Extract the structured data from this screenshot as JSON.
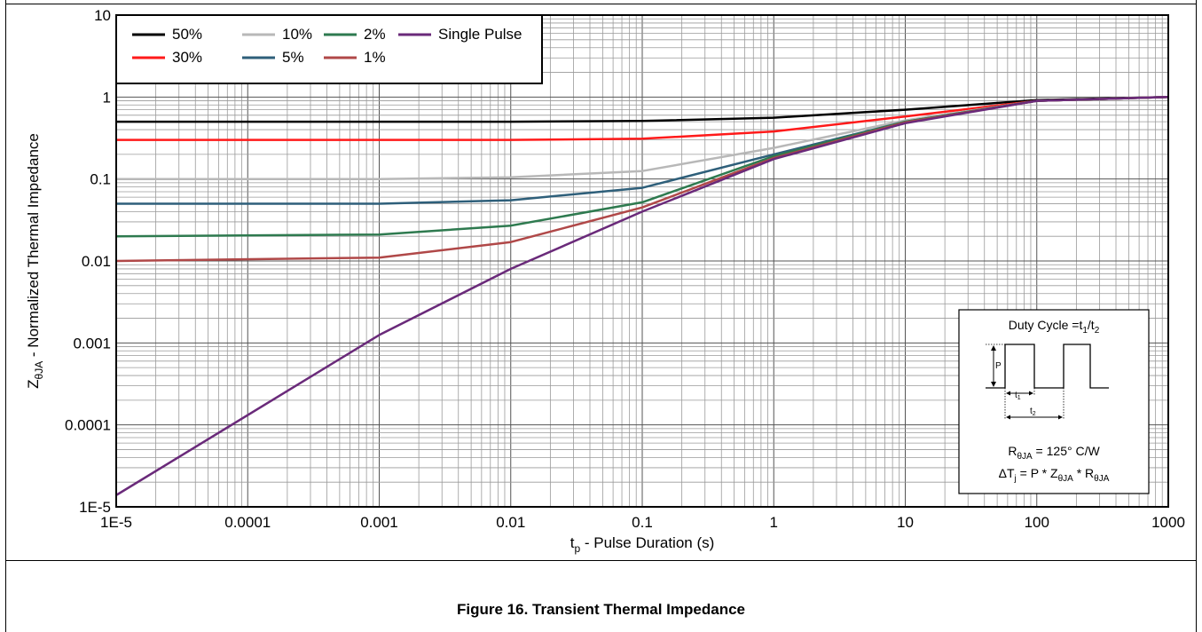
{
  "caption": "Figure 16. Transient Thermal Impedance",
  "chart_data": {
    "type": "line",
    "title": "",
    "xscale": "log",
    "yscale": "log",
    "xlabel": {
      "main": "t",
      "sub": "p",
      "rest": " - Pulse Duration (s)"
    },
    "ylabel": {
      "main": "Z",
      "sub": "θJA",
      "rest": " - Normalized Thermal Impedance"
    },
    "xlim": [
      1e-05,
      1000
    ],
    "ylim": [
      1e-05,
      10
    ],
    "grid": true,
    "legend_position": "top-left",
    "x_ticks": [
      {
        "value": 1e-05,
        "label": "1E-5"
      },
      {
        "value": 0.0001,
        "label": "0.0001"
      },
      {
        "value": 0.001,
        "label": "0.001"
      },
      {
        "value": 0.01,
        "label": "0.01"
      },
      {
        "value": 0.1,
        "label": "0.1"
      },
      {
        "value": 1,
        "label": "1"
      },
      {
        "value": 10,
        "label": "10"
      },
      {
        "value": 100,
        "label": "100"
      },
      {
        "value": 1000,
        "label": "1000"
      }
    ],
    "y_ticks": [
      {
        "value": 1e-05,
        "label": "1E-5"
      },
      {
        "value": 0.0001,
        "label": "0.0001"
      },
      {
        "value": 0.001,
        "label": "0.001"
      },
      {
        "value": 0.01,
        "label": "0.01"
      },
      {
        "value": 0.1,
        "label": "0.1"
      },
      {
        "value": 1,
        "label": "1"
      },
      {
        "value": 10,
        "label": "10"
      }
    ],
    "series": [
      {
        "name": "50%",
        "color": "#000000",
        "x": [
          1e-05,
          0.001,
          0.01,
          0.1,
          1,
          10,
          100,
          1000
        ],
        "y": [
          0.5,
          0.5,
          0.5,
          0.51,
          0.56,
          0.7,
          0.92,
          1.0
        ]
      },
      {
        "name": "30%",
        "color": "#ff1a1a",
        "x": [
          1e-05,
          0.001,
          0.01,
          0.1,
          1,
          10,
          100,
          1000
        ],
        "y": [
          0.3,
          0.3,
          0.3,
          0.31,
          0.38,
          0.58,
          0.9,
          1.0
        ]
      },
      {
        "name": "10%",
        "color": "#b8b8b8",
        "x": [
          1e-05,
          0.001,
          0.01,
          0.1,
          1,
          10,
          100,
          1000
        ],
        "y": [
          0.1,
          0.1,
          0.105,
          0.125,
          0.24,
          0.52,
          0.9,
          1.0
        ]
      },
      {
        "name": "5%",
        "color": "#2e5f7a",
        "x": [
          1e-05,
          0.001,
          0.01,
          0.1,
          1,
          10,
          100,
          1000
        ],
        "y": [
          0.05,
          0.05,
          0.055,
          0.078,
          0.2,
          0.5,
          0.9,
          1.0
        ]
      },
      {
        "name": "2%",
        "color": "#2e7a4f",
        "x": [
          1e-05,
          0.001,
          0.01,
          0.1,
          1,
          10,
          100,
          1000
        ],
        "y": [
          0.02,
          0.021,
          0.027,
          0.052,
          0.19,
          0.5,
          0.9,
          1.0
        ]
      },
      {
        "name": "1%",
        "color": "#b04848",
        "x": [
          1e-05,
          0.001,
          0.01,
          0.1,
          1,
          10,
          100,
          1000
        ],
        "y": [
          0.01,
          0.011,
          0.017,
          0.045,
          0.18,
          0.49,
          0.9,
          1.0
        ]
      },
      {
        "name": "Single Pulse",
        "color": "#6a2a7a",
        "x": [
          1.01e-05,
          0.001,
          0.01,
          0.1,
          1,
          10,
          100,
          1000
        ],
        "y": [
          1.4e-05,
          0.00125,
          0.008,
          0.04,
          0.175,
          0.48,
          0.9,
          1.0
        ]
      }
    ],
    "legend_layout": [
      [
        "50%",
        "10%",
        "2%",
        "Single Pulse"
      ],
      [
        "30%",
        "5%",
        "1%"
      ]
    ],
    "inset": {
      "title_prefix": "Duty Cycle =t",
      "title_sub1": "1",
      "title_mid": "/t",
      "title_sub2": "2",
      "p_label": "P",
      "t1_label": "t",
      "t1_sub": "1",
      "t2_label": "t",
      "t2_sub": "2",
      "r_prefix": "R",
      "r_sub": "θJA",
      "r_value": " = 125° C/W",
      "eq_prefix": "ΔT",
      "eq_sub1": "j",
      "eq_mid1": " = P * Z",
      "eq_sub2": "θJA",
      "eq_mid2": " * R",
      "eq_sub3": "θJA"
    }
  }
}
